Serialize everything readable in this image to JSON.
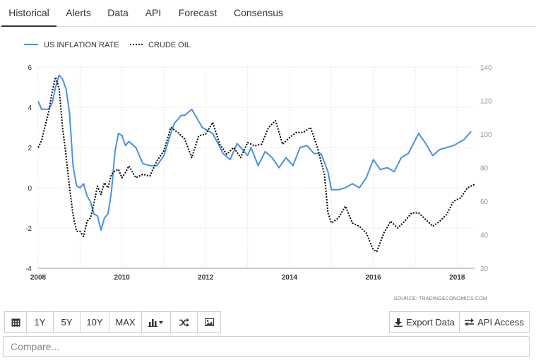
{
  "tabs": [
    {
      "label": "Historical",
      "active": true
    },
    {
      "label": "Alerts"
    },
    {
      "label": "Data"
    },
    {
      "label": "API"
    },
    {
      "label": "Forecast"
    },
    {
      "label": "Consensus"
    }
  ],
  "chart_data": {
    "type": "line",
    "title": "",
    "source": "SOURCE: TRADINGECONOMICS.COM",
    "legend_position": "top-left",
    "grid": true,
    "x_ticks": [
      "2008",
      "2010",
      "2012",
      "2014",
      "2016",
      "2018"
    ],
    "y_left_ticks": [
      "6",
      "4",
      "2",
      "0",
      "-2",
      "-4"
    ],
    "y_right_ticks": [
      "140",
      "120",
      "100",
      "80",
      "60",
      "40",
      "20"
    ],
    "y_left_range": [
      -4,
      6
    ],
    "y_right_range": [
      20,
      140
    ],
    "x_range": [
      "2008-01",
      "2018-06"
    ],
    "series": [
      {
        "name": "US INFLATION RATE",
        "axis": "left",
        "color": "#4a90e2",
        "style": "solid",
        "x": [
          "2008-01",
          "2008-02",
          "2008-04",
          "2008-05",
          "2008-06",
          "2008-07",
          "2008-08",
          "2008-09",
          "2008-10",
          "2008-11",
          "2008-12",
          "2009-01",
          "2009-02",
          "2009-03",
          "2009-04",
          "2009-05",
          "2009-06",
          "2009-07",
          "2009-08",
          "2009-09",
          "2009-10",
          "2009-11",
          "2009-12",
          "2010-01",
          "2010-02",
          "2010-03",
          "2010-05",
          "2010-07",
          "2010-09",
          "2010-11",
          "2011-01",
          "2011-03",
          "2011-04",
          "2011-06",
          "2011-07",
          "2011-09",
          "2011-12",
          "2012-03",
          "2012-06",
          "2012-08",
          "2012-10",
          "2013-01",
          "2013-02",
          "2013-04",
          "2013-06",
          "2013-08",
          "2013-10",
          "2013-12",
          "2014-02",
          "2014-04",
          "2014-06",
          "2014-08",
          "2014-10",
          "2014-12",
          "2015-01",
          "2015-03",
          "2015-05",
          "2015-07",
          "2015-09",
          "2015-11",
          "2016-01",
          "2016-03",
          "2016-05",
          "2016-07",
          "2016-09",
          "2016-11",
          "2017-02",
          "2017-04",
          "2017-06",
          "2017-08",
          "2017-10",
          "2017-12",
          "2018-03",
          "2018-05"
        ],
        "y": [
          4.3,
          3.9,
          3.9,
          4.2,
          5.0,
          5.6,
          5.4,
          4.9,
          3.7,
          1.1,
          0.1,
          0.0,
          0.2,
          -0.4,
          -0.7,
          -1.3,
          -1.4,
          -2.1,
          -1.5,
          -1.3,
          -0.2,
          1.8,
          2.7,
          2.6,
          2.1,
          2.3,
          2.0,
          1.2,
          1.1,
          1.1,
          1.6,
          2.7,
          3.2,
          3.6,
          3.6,
          3.9,
          3.0,
          2.7,
          1.7,
          1.4,
          2.2,
          1.6,
          2.0,
          1.1,
          1.8,
          1.5,
          1.0,
          1.5,
          1.1,
          2.0,
          2.1,
          1.7,
          1.7,
          0.8,
          -0.1,
          -0.1,
          0.0,
          0.2,
          0.0,
          0.5,
          1.4,
          0.9,
          1.0,
          0.8,
          1.5,
          1.7,
          2.7,
          2.2,
          1.6,
          1.9,
          2.0,
          2.1,
          2.4,
          2.8
        ]
      },
      {
        "name": "CRUDE OIL",
        "axis": "right",
        "color": "#000000",
        "style": "dotted",
        "x": [
          "2008-01",
          "2008-02",
          "2008-03",
          "2008-04",
          "2008-05",
          "2008-06",
          "2008-07",
          "2008-08",
          "2008-09",
          "2008-10",
          "2008-11",
          "2008-12",
          "2009-01",
          "2009-02",
          "2009-03",
          "2009-04",
          "2009-05",
          "2009-06",
          "2009-07",
          "2009-08",
          "2009-09",
          "2009-10",
          "2009-11",
          "2009-12",
          "2010-01",
          "2010-02",
          "2010-03",
          "2010-05",
          "2010-07",
          "2010-09",
          "2010-11",
          "2011-01",
          "2011-03",
          "2011-05",
          "2011-07",
          "2011-09",
          "2011-11",
          "2012-01",
          "2012-03",
          "2012-05",
          "2012-07",
          "2012-09",
          "2012-11",
          "2013-01",
          "2013-03",
          "2013-05",
          "2013-07",
          "2013-09",
          "2013-11",
          "2014-01",
          "2014-03",
          "2014-05",
          "2014-07",
          "2014-09",
          "2014-11",
          "2014-12",
          "2015-01",
          "2015-03",
          "2015-05",
          "2015-07",
          "2015-09",
          "2015-11",
          "2016-01",
          "2016-02",
          "2016-04",
          "2016-06",
          "2016-08",
          "2016-10",
          "2016-12",
          "2017-02",
          "2017-04",
          "2017-06",
          "2017-08",
          "2017-10",
          "2017-12",
          "2018-02",
          "2018-04",
          "2018-06"
        ],
        "y": [
          92,
          96,
          105,
          113,
          125,
          134,
          127,
          104,
          87,
          68,
          52,
          42,
          42,
          39,
          48,
          50,
          59,
          69,
          64,
          71,
          68,
          76,
          78,
          79,
          74,
          77,
          81,
          74,
          76,
          75,
          84,
          90,
          104,
          101,
          97,
          86,
          99,
          100,
          107,
          94,
          88,
          92,
          86,
          95,
          93,
          94,
          104,
          108,
          94,
          98,
          101,
          101,
          104,
          92,
          76,
          53,
          47,
          50,
          57,
          47,
          45,
          41,
          31,
          30,
          41,
          48,
          44,
          48,
          53,
          53,
          49,
          45,
          48,
          52,
          60,
          62,
          68,
          70
        ]
      }
    ]
  },
  "toolbar": {
    "calendar_icon": "calendar-icon",
    "b1y": "1Y",
    "b5y": "5Y",
    "b10y": "10Y",
    "bmax": "MAX",
    "chart_type_icon": "bar-chart-icon",
    "shuffle_icon": "shuffle-icon",
    "image_icon": "image-icon",
    "export_label": "Export Data",
    "api_label": "API Access"
  },
  "compare": {
    "placeholder": "Compare..."
  }
}
